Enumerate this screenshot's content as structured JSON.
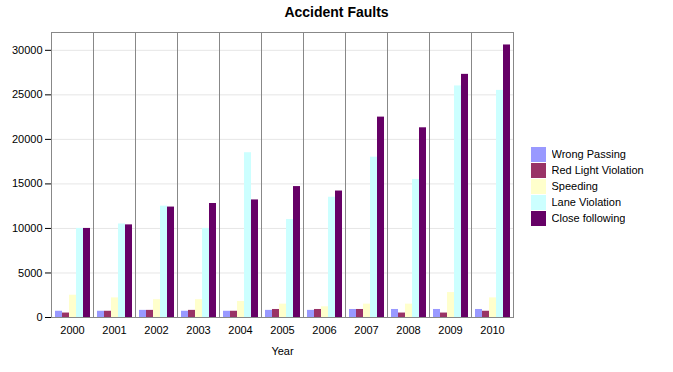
{
  "chart_data": {
    "type": "bar",
    "title": "Accident Faults",
    "xlabel": "Year",
    "categories": [
      "2000",
      "2001",
      "2002",
      "2003",
      "2004",
      "2005",
      "2006",
      "2007",
      "2008",
      "2009",
      "2010"
    ],
    "series": [
      {
        "name": "Wrong Passing",
        "color": "#9999ff",
        "values": [
          700,
          700,
          800,
          700,
          700,
          800,
          800,
          900,
          900,
          900,
          900
        ]
      },
      {
        "name": "Red Light Violation",
        "color": "#993366",
        "values": [
          500,
          700,
          800,
          800,
          700,
          900,
          900,
          900,
          500,
          500,
          700
        ]
      },
      {
        "name": "Speeding",
        "color": "#ffffcc",
        "values": [
          2500,
          2200,
          2000,
          2000,
          1800,
          1500,
          1200,
          1500,
          1500,
          2800,
          2200
        ]
      },
      {
        "name": "Lane Violation",
        "color": "#ccffff",
        "values": [
          10000,
          10500,
          12500,
          10000,
          18500,
          11000,
          13500,
          18000,
          15500,
          26000,
          25500
        ]
      },
      {
        "name": "Close following",
        "color": "#660066",
        "values": [
          10000,
          10400,
          12400,
          12800,
          13200,
          14700,
          14200,
          22500,
          21300,
          27300,
          30600
        ]
      }
    ],
    "ylim": [
      0,
      32000
    ],
    "yticks": [
      0,
      5000,
      10000,
      15000,
      20000,
      25000,
      30000
    ],
    "grid": true,
    "legend": "right"
  }
}
